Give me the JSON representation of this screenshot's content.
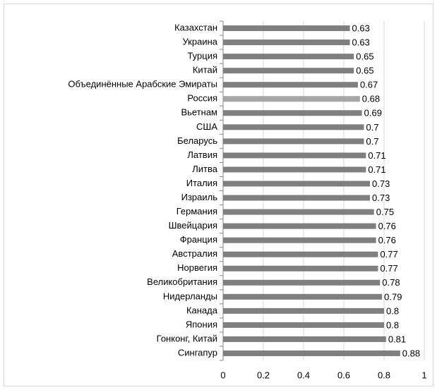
{
  "chart_data": {
    "type": "barh",
    "categories": [
      "Казахстан",
      "Украина",
      "Турция",
      "Китай",
      "Объединённые Арабские Эмираты",
      "Россия",
      "Вьетнам",
      "США",
      "Беларусь",
      "Латвия",
      "Литва",
      "Италия",
      "Израиль",
      "Германия",
      "Швейцария",
      "Франция",
      "Австралия",
      "Норвегия",
      "Великобритания",
      "Нидерланды",
      "Канада",
      "Япония",
      "Гонконг, Китай",
      "Сингапур"
    ],
    "values": [
      0.63,
      0.63,
      0.65,
      0.65,
      0.67,
      0.68,
      0.69,
      0.7,
      0.7,
      0.71,
      0.71,
      0.73,
      0.73,
      0.75,
      0.76,
      0.76,
      0.77,
      0.77,
      0.78,
      0.79,
      0.8,
      0.8,
      0.81,
      0.88
    ],
    "colors": [
      "#7f7f7f",
      "#7f7f7f",
      "#7f7f7f",
      "#7f7f7f",
      "#7f7f7f",
      "#a6a6a6",
      "#7f7f7f",
      "#7f7f7f",
      "#7f7f7f",
      "#7f7f7f",
      "#7f7f7f",
      "#7f7f7f",
      "#7f7f7f",
      "#7f7f7f",
      "#7f7f7f",
      "#7f7f7f",
      "#7f7f7f",
      "#7f7f7f",
      "#7f7f7f",
      "#7f7f7f",
      "#7f7f7f",
      "#7f7f7f",
      "#7f7f7f",
      "#7f7f7f"
    ],
    "xlim": [
      0,
      1
    ],
    "xticks": [
      0,
      0.2,
      0.4,
      0.6,
      0.8,
      1
    ],
    "grid": true
  }
}
